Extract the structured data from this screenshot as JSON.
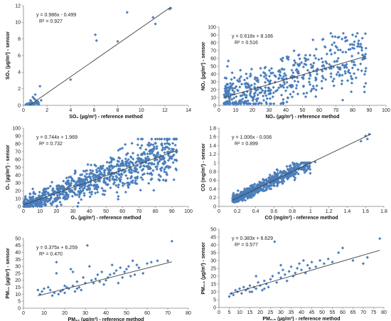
{
  "figure": {
    "marker_color": "#4a7ebb",
    "trend_color": "#404040",
    "axis_color": "#808080"
  },
  "chart_data": [
    {
      "type": "scatter",
      "xlabel": "SO₂ (µg/m³) - reference method",
      "ylabel": "SO₂ (µg/m³) - sensor",
      "equation": "y = 0.986x - 0.499",
      "r2": "R² = 0.927",
      "xlim": [
        0,
        14
      ],
      "ylim": [
        0,
        12
      ],
      "xticks": [
        0,
        2,
        4,
        6,
        8,
        10,
        12,
        14
      ],
      "yticks": [
        0,
        2,
        4,
        6,
        8,
        10,
        12
      ],
      "trend": {
        "slope": 0.986,
        "intercept": -0.499,
        "x_range": [
          0.5,
          12.5
        ]
      },
      "points": [
        [
          0.2,
          0.1
        ],
        [
          0.3,
          0.2
        ],
        [
          0.4,
          0.1
        ],
        [
          0.5,
          0.3
        ],
        [
          0.5,
          0.1
        ],
        [
          0.6,
          0.2
        ],
        [
          0.7,
          0.4
        ],
        [
          0.6,
          0.6
        ],
        [
          0.8,
          0.2
        ],
        [
          0.8,
          1.0
        ],
        [
          0.9,
          0.1
        ],
        [
          1.0,
          0.3
        ],
        [
          1.0,
          0.7
        ],
        [
          1.1,
          0.2
        ],
        [
          1.1,
          0.4
        ],
        [
          1.2,
          0.5
        ],
        [
          1.3,
          0.3
        ],
        [
          1.3,
          0.1
        ],
        [
          1.4,
          2.3
        ],
        [
          1.5,
          0.6
        ],
        [
          1.0,
          1.3
        ],
        [
          0.9,
          0.8
        ],
        [
          1.2,
          0.2
        ],
        [
          0.7,
          0.1
        ],
        [
          4.0,
          3.1
        ],
        [
          6.1,
          8.5
        ],
        [
          6.2,
          7.8
        ],
        [
          8.0,
          7.7
        ],
        [
          8.8,
          11.2
        ],
        [
          11.0,
          10.6
        ],
        [
          11.2,
          9.8
        ],
        [
          12.4,
          11.6
        ],
        [
          12.5,
          11.7
        ]
      ]
    },
    {
      "type": "scatter",
      "xlabel": "NO₂ (µg/m³) - reference method",
      "ylabel": "NO₂ (µg/m³) - sensor",
      "equation": "y = 0.618x + 8.166",
      "r2": "R² = 0.516",
      "xlim": [
        0,
        100
      ],
      "ylim": [
        0,
        100
      ],
      "xticks": [
        0,
        10,
        20,
        30,
        40,
        50,
        60,
        70,
        80,
        90,
        100
      ],
      "yticks": [
        0,
        10,
        20,
        30,
        40,
        50,
        60,
        70,
        80,
        90,
        100
      ],
      "trend": {
        "slope": 0.618,
        "intercept": 8.166,
        "x_range": [
          3,
          88
        ]
      },
      "cloud": {
        "n": 520,
        "x_range": [
          3,
          88
        ],
        "x_skew": 1.3,
        "slope": 0.618,
        "intercept": 8.166,
        "spread": 12,
        "spread_growth": 0.12,
        "y_min": 2,
        "y_max": 92,
        "seed": 11
      },
      "points": [
        [
          80,
          90
        ],
        [
          76,
          87
        ],
        [
          82,
          88
        ],
        [
          62,
          84
        ],
        [
          85,
          75
        ],
        [
          88,
          73
        ],
        [
          69,
          80
        ]
      ]
    },
    {
      "type": "scatter",
      "xlabel": "O₃ (µg/m³) - reference method",
      "ylabel": "O₃ (µg/m³) - sensor",
      "equation": "y = 0.744x + 1.969",
      "r2": "R² = 0.732",
      "xlim": [
        0,
        100
      ],
      "ylim": [
        0,
        100
      ],
      "xticks": [
        0,
        10,
        20,
        30,
        40,
        50,
        60,
        70,
        80,
        90,
        100
      ],
      "yticks": [
        0,
        10,
        20,
        30,
        40,
        50,
        60,
        70,
        80,
        90,
        100
      ],
      "trend": {
        "slope": 0.744,
        "intercept": 1.969,
        "x_range": [
          0,
          93
        ]
      },
      "cloud": {
        "n": 900,
        "x_range": [
          0,
          93
        ],
        "x_skew": 1.1,
        "slope": 0.744,
        "intercept": 1.969,
        "spread": 5,
        "spread_growth": 0.12,
        "y_min": 0,
        "y_max": 86,
        "seed": 23
      },
      "points": [
        [
          88,
          80
        ],
        [
          91,
          73
        ],
        [
          93,
          70
        ],
        [
          84,
          78
        ],
        [
          80,
          81
        ]
      ]
    },
    {
      "type": "scatter",
      "xlabel": "CO (mg/m³) - reference method",
      "ylabel": "CO (mg/m³) - sensor",
      "equation": "y = 1.006x - 0.006",
      "r2": "R² = 0.899",
      "xlim": [
        0,
        1.8
      ],
      "ylim": [
        0,
        1.8
      ],
      "xticks": [
        0,
        0.2,
        0.4,
        0.6,
        0.8,
        1,
        1.2,
        1.4,
        1.6,
        1.8
      ],
      "yticks": [
        0,
        0.2,
        0.4,
        0.6,
        0.8,
        1,
        1.2,
        1.4,
        1.6,
        1.8
      ],
      "trend": {
        "slope": 1.006,
        "intercept": -0.006,
        "x_range": [
          0.15,
          1.66
        ]
      },
      "cloud": {
        "n": 650,
        "x_range": [
          0.15,
          1.0
        ],
        "x_skew": 1.6,
        "slope": 1.006,
        "intercept": -0.006,
        "spread": 0.04,
        "spread_growth": 0.06,
        "y_min": 0.1,
        "y_max": 1.0,
        "seed": 37
      },
      "points": [
        [
          1.6,
          1.62
        ],
        [
          1.62,
          1.55
        ],
        [
          1.64,
          1.66
        ],
        [
          1.55,
          1.5
        ],
        [
          1.05,
          1.02
        ]
      ]
    },
    {
      "type": "scatter",
      "xlabel": "PM₁₀ (µg/m³) - reference method",
      "ylabel": "PM₁₀ (µg/m³) - sensor",
      "equation": "y = 0.375x + 6.259",
      "r2": "R² = 0.470",
      "xlim": [
        0,
        80
      ],
      "ylim": [
        0,
        50
      ],
      "xticks": [
        0,
        10,
        20,
        30,
        40,
        50,
        60,
        70,
        80
      ],
      "yticks": [
        0,
        5,
        10,
        15,
        20,
        25,
        30,
        35,
        40,
        45,
        50
      ],
      "trend": {
        "slope": 0.375,
        "intercept": 6.259,
        "x_range": [
          7,
          72
        ]
      },
      "points": [
        [
          7,
          13
        ],
        [
          8,
          10
        ],
        [
          9,
          12
        ],
        [
          10,
          14
        ],
        [
          12,
          15
        ],
        [
          14,
          9
        ],
        [
          15,
          11
        ],
        [
          16,
          33
        ],
        [
          16,
          25
        ],
        [
          17,
          10
        ],
        [
          18,
          12
        ],
        [
          19,
          13
        ],
        [
          20,
          11
        ],
        [
          21,
          15
        ],
        [
          22,
          14
        ],
        [
          23,
          28
        ],
        [
          24,
          16
        ],
        [
          25,
          12
        ],
        [
          26,
          14
        ],
        [
          26,
          19
        ],
        [
          27,
          15
        ],
        [
          28,
          13
        ],
        [
          29,
          22
        ],
        [
          30,
          18
        ],
        [
          31,
          45
        ],
        [
          32,
          30
        ],
        [
          33,
          20
        ],
        [
          34,
          18
        ],
        [
          35,
          21
        ],
        [
          36,
          24
        ],
        [
          37,
          19
        ],
        [
          38,
          26
        ],
        [
          39,
          17
        ],
        [
          40,
          20
        ],
        [
          41,
          22
        ],
        [
          42,
          24
        ],
        [
          43,
          31
        ],
        [
          44,
          25
        ],
        [
          45,
          27
        ],
        [
          46,
          18
        ],
        [
          47,
          29
        ],
        [
          48,
          22
        ],
        [
          49,
          26
        ],
        [
          50,
          28
        ],
        [
          51,
          30
        ],
        [
          52,
          23
        ],
        [
          53,
          34
        ],
        [
          54,
          24
        ],
        [
          55,
          31
        ],
        [
          56,
          29
        ],
        [
          58,
          25
        ],
        [
          60,
          32
        ],
        [
          62,
          33
        ],
        [
          65,
          34
        ],
        [
          70,
          34
        ],
        [
          72,
          48
        ],
        [
          13,
          13
        ],
        [
          20,
          16
        ],
        [
          24,
          26
        ]
      ]
    },
    {
      "type": "scatter",
      "xlabel": "PM₂.₅ (µg/m³) - reference method",
      "ylabel": "PM₂.₅ (µg/m³) - sensor",
      "equation": "y = 0.383x + 6.629",
      "r2": "R² = 0.577",
      "xlim": [
        0,
        80
      ],
      "ylim": [
        0,
        50
      ],
      "xticks": [
        0,
        5,
        10,
        15,
        20,
        25,
        30,
        35,
        40,
        45,
        50,
        55,
        60,
        65,
        70,
        75,
        80
      ],
      "yticks": [
        0,
        5,
        10,
        15,
        20,
        25,
        30,
        35,
        40,
        45,
        50
      ],
      "trend": {
        "slope": 0.383,
        "intercept": 6.629,
        "x_range": [
          5,
          78
        ]
      },
      "points": [
        [
          5,
          7
        ],
        [
          6,
          9
        ],
        [
          7,
          8
        ],
        [
          8,
          11
        ],
        [
          9,
          10
        ],
        [
          10,
          12
        ],
        [
          11,
          9
        ],
        [
          12,
          13
        ],
        [
          13,
          11
        ],
        [
          14,
          12
        ],
        [
          15,
          14
        ],
        [
          16,
          10
        ],
        [
          17,
          13
        ],
        [
          18,
          12
        ],
        [
          19,
          16
        ],
        [
          20,
          14
        ],
        [
          21,
          11
        ],
        [
          22,
          17
        ],
        [
          23,
          15
        ],
        [
          24,
          13
        ],
        [
          25,
          18
        ],
        [
          26,
          20
        ],
        [
          27,
          42
        ],
        [
          28,
          16
        ],
        [
          29,
          22
        ],
        [
          30,
          19
        ],
        [
          31,
          24
        ],
        [
          32,
          21
        ],
        [
          33,
          17
        ],
        [
          34,
          23
        ],
        [
          35,
          26
        ],
        [
          36,
          20
        ],
        [
          37,
          22
        ],
        [
          38,
          25
        ],
        [
          39,
          28
        ],
        [
          40,
          24
        ],
        [
          41,
          30
        ],
        [
          42,
          22
        ],
        [
          43,
          27
        ],
        [
          44,
          25
        ],
        [
          45,
          29
        ],
        [
          47,
          26
        ],
        [
          49,
          30
        ],
        [
          51,
          28
        ],
        [
          53,
          31
        ],
        [
          55,
          29
        ],
        [
          58,
          35
        ],
        [
          60,
          38
        ],
        [
          65,
          30
        ],
        [
          70,
          28
        ],
        [
          72,
          32
        ],
        [
          78,
          44
        ],
        [
          15,
          10
        ],
        [
          18,
          20
        ],
        [
          22,
          12
        ],
        [
          30,
          27
        ]
      ]
    }
  ]
}
